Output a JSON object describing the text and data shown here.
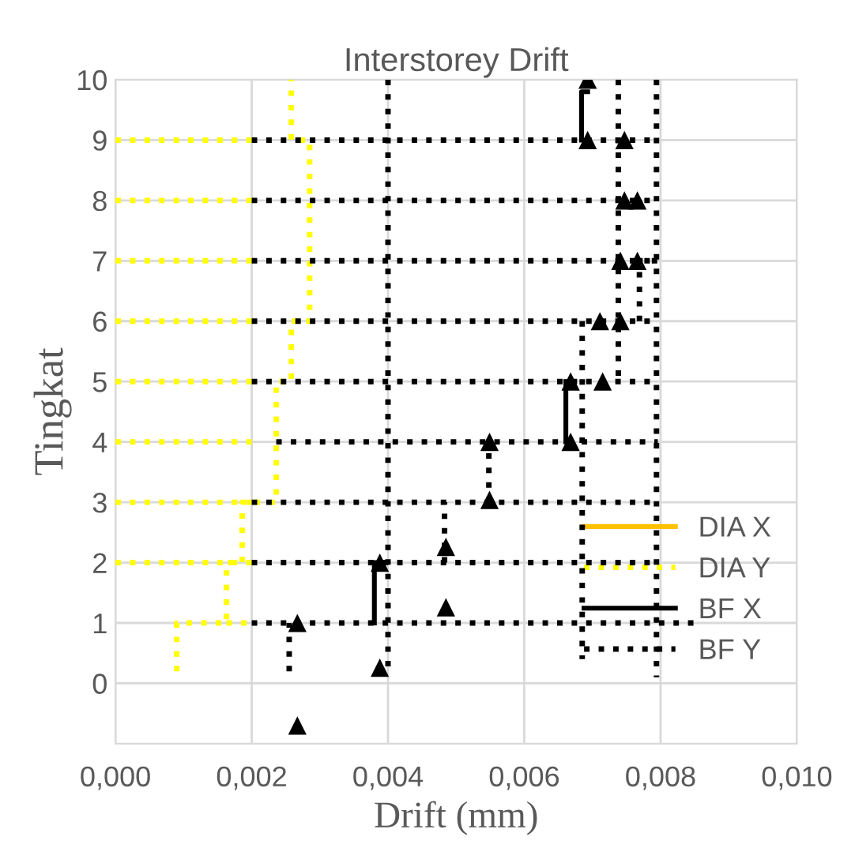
{
  "chart_data": {
    "type": "line",
    "title": "Interstorey Drift",
    "xlabel": "Drift (mm)",
    "ylabel": "Tingkat",
    "xlim": [
      0,
      0.01
    ],
    "ylim": [
      -1,
      10
    ],
    "xticks": [
      {
        "value": 0,
        "label": "0,000"
      },
      {
        "value": 0.002,
        "label": "0,002"
      },
      {
        "value": 0.004,
        "label": "0,004"
      },
      {
        "value": 0.006,
        "label": "0,006"
      },
      {
        "value": 0.008,
        "label": "0,008"
      },
      {
        "value": 0.01,
        "label": "0,010"
      }
    ],
    "yticks": [
      0,
      1,
      2,
      3,
      4,
      5,
      6,
      7,
      8,
      9,
      10
    ],
    "grid": true,
    "legend": "bottom right",
    "series": [
      {
        "name": "DIA X",
        "color": "#ffc000",
        "line_style": "solid"
      },
      {
        "name": "DIA Y",
        "color": "#ffff00",
        "line_style": "dotted",
        "x": [
          0.0009,
          0.0009,
          0.00163,
          0.00163,
          0.00186,
          0.00186,
          0.00236,
          0.00236,
          0.00258,
          0.00258,
          0.00285,
          0.00285,
          0.00258,
          0.00258
        ],
        "values": [
          0.2,
          1,
          1,
          2,
          2,
          3,
          3,
          5,
          5,
          6,
          6,
          9,
          9,
          10
        ]
      },
      {
        "color": "#ffff00",
        "line_style": "dotted",
        "x": [
          0.00163,
          0.002
        ],
        "values": [
          1,
          1
        ]
      },
      {
        "color": "#ffff00",
        "line_style": "dotted",
        "x": [
          0,
          0.002
        ],
        "values": [
          2,
          2
        ]
      },
      {
        "color": "#ffff00",
        "line_style": "dotted",
        "x": [
          0,
          0.002
        ],
        "values": [
          3,
          3
        ]
      },
      {
        "color": "#ffff00",
        "line_style": "dotted",
        "x": [
          0,
          0.002
        ],
        "values": [
          4,
          4
        ]
      },
      {
        "color": "#ffff00",
        "line_style": "dotted",
        "x": [
          0,
          0.002
        ],
        "values": [
          5,
          5
        ]
      },
      {
        "color": "#ffff00",
        "line_style": "dotted",
        "x": [
          0,
          0.002
        ],
        "values": [
          6,
          6
        ]
      },
      {
        "color": "#ffff00",
        "line_style": "dotted",
        "x": [
          0,
          0.002
        ],
        "values": [
          7,
          7
        ]
      },
      {
        "color": "#ffff00",
        "line_style": "dotted",
        "x": [
          0,
          0.002
        ],
        "values": [
          8,
          8
        ]
      },
      {
        "color": "#ffff00",
        "line_style": "dotted",
        "x": [
          0,
          0.002
        ],
        "values": [
          9,
          9
        ]
      },
      {
        "name": "BF X",
        "color": "#000000",
        "line_style": "solid",
        "x": [
          0.0038,
          0.0038
        ],
        "values": [
          1,
          2
        ]
      },
      {
        "color": "#000000",
        "line_style": "solid",
        "x": [
          0.00661,
          0.00661
        ],
        "values": [
          4,
          5
        ]
      },
      {
        "color": "#000000",
        "line_style": "solid",
        "x": [
          0.00684,
          0.00684,
          0.00693
        ],
        "values": [
          9,
          9.8,
          9.8
        ]
      },
      {
        "name": "BF Y",
        "color": "#000000",
        "line_style": "dotted",
        "x": [
          0.002,
          0.00857
        ],
        "values": [
          1,
          1
        ]
      },
      {
        "color": "#000000",
        "line_style": "dotted",
        "x": [
          0.002,
          0.00796
        ],
        "values": [
          2,
          2
        ]
      },
      {
        "color": "#000000",
        "line_style": "dotted",
        "x": [
          0.002,
          0.00796
        ],
        "values": [
          3,
          3
        ]
      },
      {
        "color": "#000000",
        "line_style": "dotted",
        "x": [
          0.00236,
          0.00796
        ],
        "values": [
          4,
          4
        ]
      },
      {
        "color": "#000000",
        "line_style": "dotted",
        "x": [
          0.002,
          0.00796
        ],
        "values": [
          5,
          5
        ]
      },
      {
        "color": "#000000",
        "line_style": "dotted",
        "x": [
          0.002,
          0.00796
        ],
        "values": [
          6,
          6
        ]
      },
      {
        "color": "#000000",
        "line_style": "dotted",
        "x": [
          0.002,
          0.00796
        ],
        "values": [
          7,
          7
        ]
      },
      {
        "color": "#000000",
        "line_style": "dotted",
        "x": [
          0.002,
          0.00796
        ],
        "values": [
          8,
          8
        ]
      },
      {
        "color": "#000000",
        "line_style": "dotted",
        "x": [
          0.002,
          0.00796
        ],
        "values": [
          9,
          9
        ]
      },
      {
        "color": "#000000",
        "line_style": "dotted",
        "x": [
          0.004,
          0.004
        ],
        "values": [
          10,
          0.2
        ]
      },
      {
        "color": "#000000",
        "line_style": "dotted",
        "x": [
          0.00738,
          0.00738
        ],
        "values": [
          10,
          5
        ]
      },
      {
        "color": "#000000",
        "line_style": "dotted",
        "x": [
          0.00794,
          0.00794
        ],
        "values": [
          10,
          0.1
        ]
      },
      {
        "color": "#000000",
        "line_style": "dotted",
        "x": [
          0.00685,
          0.00685
        ],
        "values": [
          6,
          0.4
        ]
      },
      {
        "color": "#000000",
        "line_style": "dotted",
        "x": [
          0.00769,
          0.00769,
          0.00796
        ],
        "values": [
          6,
          7,
          7
        ]
      },
      {
        "color": "#000000",
        "line_style": "dotted",
        "x": [
          0.00255,
          0.00255
        ],
        "values": [
          0.2,
          1
        ]
      },
      {
        "color": "#000000",
        "line_style": "dotted",
        "x": [
          0.00483,
          0.00483
        ],
        "values": [
          2,
          3
        ]
      },
      {
        "color": "#000000",
        "line_style": "dotted",
        "x": [
          0.00548,
          0.00548
        ],
        "values": [
          3,
          4
        ]
      },
      {
        "color": "#000000",
        "type": "scatter",
        "marker": "triangle",
        "x": [
          0.00267,
          0.00267,
          0.00388,
          0.00388,
          0.00485,
          0.00485,
          0.00549,
          0.00549,
          0.00668,
          0.00668,
          0.00715,
          0.00711,
          0.00741,
          0.00741,
          0.00766,
          0.00747,
          0.00766,
          0.00693,
          0.00747,
          0.00693
        ],
        "values": [
          -0.7,
          1,
          2,
          0.26,
          1.26,
          2.26,
          3.04,
          4,
          4,
          5,
          5,
          6,
          6,
          7,
          7,
          8,
          8,
          9,
          9,
          10
        ]
      }
    ]
  }
}
